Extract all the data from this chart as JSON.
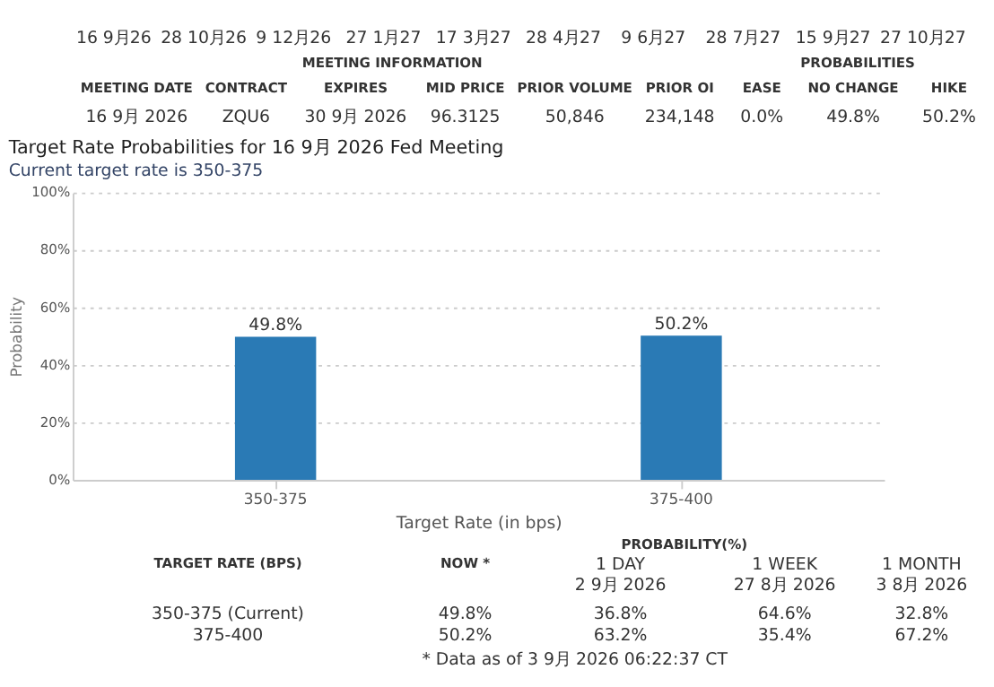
{
  "chart_data": [
    {
      "type": "other",
      "annotations": [
        "16 9月26",
        "28 10月26",
        "9 12月26",
        "27 1月27",
        "17 3月27",
        "28 4月27",
        "9 6月27",
        "28 7月27",
        "15 9月27",
        "27 10月27",
        "MEETING INFORMATION",
        "PROBABILITIES",
        "MEETING DATE",
        "CONTRACT",
        "EXPIRES",
        "MID PRICE",
        "PRIOR VOLUME",
        "PRIOR OI",
        "EASE",
        "NO CHANGE",
        "HIKE",
        "16 9月 2026",
        "ZQU6",
        "30 9月 2026",
        "96.3125",
        "50,846",
        "234,148",
        "0.0%",
        "49.8%",
        "50.2%"
      ]
    },
    {
      "type": "bar",
      "title": "Target Rate Probabilities for 16 9月 2026 Fed Meeting",
      "subtitle": "Current target rate is 350-375",
      "xlabel": "Target Rate (in bps)",
      "ylabel": "Probability",
      "categories": [
        "350-375",
        "375-400"
      ],
      "values": [
        49.8,
        50.2
      ],
      "color": "#2a7ab5",
      "value_labels": [
        "49.8%",
        "50.2%"
      ],
      "ylim": [
        0,
        100
      ],
      "yticks": [
        {
          "value": 0,
          "label": "0%"
        },
        {
          "value": 20,
          "label": "20%"
        },
        {
          "value": 40,
          "label": "40%"
        },
        {
          "value": 60,
          "label": "60%"
        },
        {
          "value": 80,
          "label": "80%"
        },
        {
          "value": 100,
          "label": "100%"
        }
      ],
      "grid": "y"
    },
    {
      "type": "other",
      "annotations": [
        "TARGET RATE (BPS)",
        "PROBABILITY(%)",
        "NOW *",
        "1 DAY\n2 9月 2026",
        "1 WEEK\n27 8月 2026",
        "1 MONTH\n3 8月 2026",
        "350-375 (Current)",
        "49.8%",
        "36.8%",
        "64.6%",
        "32.8%",
        "375-400",
        "50.2%",
        "63.2%",
        "35.4%",
        "67.2%",
        "* Data as of 3 9月 2026 06:22:37 CT"
      ]
    }
  ]
}
